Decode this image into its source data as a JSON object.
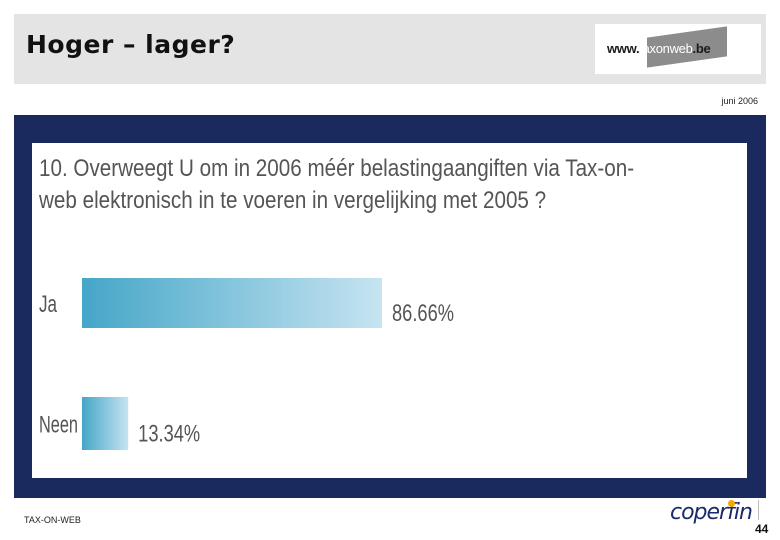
{
  "header": {
    "title": "Hoger – lager?",
    "logo_prefix": "www.",
    "logo_middle": "taxonweb",
    "logo_suffix": ".be",
    "date": "juni 2006"
  },
  "colors": {
    "panel": "#1a2a5e",
    "bar_dark": "#45a6c8",
    "bar_light": "#c6e4f1"
  },
  "chart_data": {
    "type": "bar",
    "orientation": "horizontal",
    "title": "10. Overweegt U om in 2006 méér belastingaangiften via Tax-on-web elektronisch in te voeren in vergelijking met 2005 ?",
    "categories": [
      "Ja",
      "Neen"
    ],
    "values": [
      86.66,
      13.34
    ],
    "value_labels": [
      "86.66%",
      "13.34%"
    ],
    "unit": "%",
    "grid": false,
    "legend": "none"
  },
  "footer": {
    "left_text": "TAX-ON-WEB",
    "brand": "coperfin",
    "page_number": "44"
  }
}
